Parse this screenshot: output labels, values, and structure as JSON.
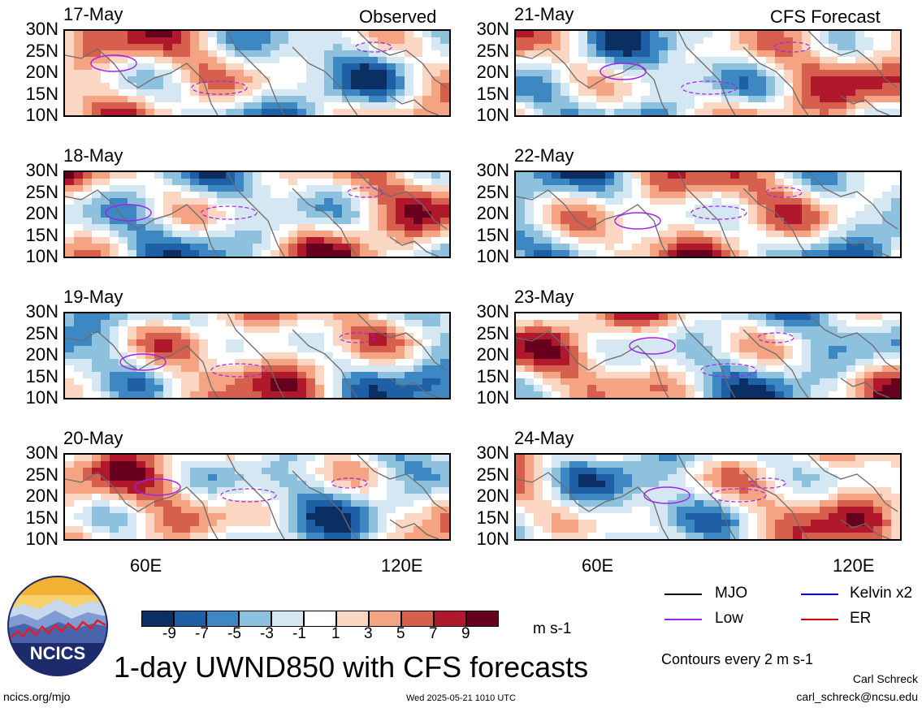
{
  "corner_labels": {
    "left": "Observed",
    "right": "CFS Forecast"
  },
  "panels": [
    {
      "date": "17-May",
      "column": "observed"
    },
    {
      "date": "18-May",
      "column": "observed"
    },
    {
      "date": "19-May",
      "column": "observed"
    },
    {
      "date": "20-May",
      "column": "observed"
    },
    {
      "date": "21-May",
      "column": "forecast"
    },
    {
      "date": "22-May",
      "column": "forecast"
    },
    {
      "date": "23-May",
      "column": "forecast"
    },
    {
      "date": "24-May",
      "column": "forecast"
    }
  ],
  "lat_ticks": [
    "30N",
    "25N",
    "20N",
    "15N",
    "10N"
  ],
  "lon_ticks": [
    "60E",
    "120E"
  ],
  "colorbar": {
    "labels": [
      "-9",
      "-7",
      "-5",
      "-3",
      "-1",
      "1",
      "3",
      "5",
      "7",
      "9"
    ],
    "colors": [
      "#0b2e63",
      "#1f5fa6",
      "#3d88c2",
      "#8ec1de",
      "#d5e7f2",
      "#ffffff",
      "#fbd6c2",
      "#f4a482",
      "#d6604d",
      "#b0182c",
      "#67001f"
    ],
    "units": "m s-1"
  },
  "legend": [
    {
      "label": "MJO",
      "color": "#000000"
    },
    {
      "label": "Low",
      "color": "#a020f0"
    },
    {
      "label": "Kelvin x2",
      "color": "#0000ff"
    },
    {
      "label": "ER",
      "color": "#d00000"
    }
  ],
  "contour_note": "Contours every 2 m s-1",
  "logo": {
    "text": "NCICS"
  },
  "title": "1-day UWND850 with CFS forecasts",
  "timestamp": "Wed 2025-05-21 1010 UTC",
  "url": "ncics.org/mjo",
  "author": "Carl Schreck",
  "email": "carl_schreck@ncsu.edu"
}
